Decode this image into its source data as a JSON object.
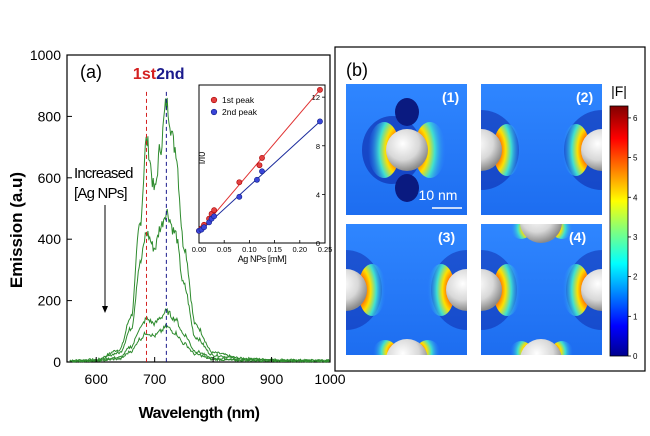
{
  "colors": {
    "spectrum": "#2e8b2e",
    "first_peak": "#d42020",
    "second_peak": "#1a1a8c",
    "panel_b_bg": "#ffffff",
    "field_low": "#1e5cff",
    "field_high": "#e02000"
  },
  "panel_a": {
    "label": "(a)",
    "annotation_line1": "Increased",
    "annotation_line2": "[Ag NPs]"
  },
  "chart_data": [
    {
      "type": "line",
      "xlabel": "Wavelength (nm)",
      "ylabel": "Emission (a.u)",
      "xlim": [
        550,
        1000
      ],
      "ylim": [
        0,
        1000
      ],
      "x_ticks": [
        "600",
        "700",
        "800",
        "900",
        "1000"
      ],
      "y_ticks": [
        "0",
        "200",
        "400",
        "600",
        "800",
        "1000"
      ],
      "peak_labels": [
        {
          "text": "1st",
          "x": 686
        },
        {
          "text": "2nd",
          "x": 720
        }
      ],
      "series": [
        {
          "x": [
            555,
            600,
            640,
            660,
            675,
            686,
            700,
            710,
            720,
            735,
            750,
            770,
            800,
            850,
            900,
            950,
            1000
          ],
          "y": [
            5,
            8,
            40,
            150,
            450,
            720,
            560,
            700,
            840,
            700,
            380,
            120,
            30,
            12,
            8,
            6,
            5
          ]
        },
        {
          "x": [
            555,
            600,
            640,
            660,
            675,
            686,
            700,
            710,
            720,
            735,
            750,
            770,
            800,
            850,
            900,
            950,
            1000
          ],
          "y": [
            4,
            6,
            30,
            110,
            320,
            420,
            370,
            440,
            490,
            420,
            250,
            80,
            22,
            10,
            6,
            5,
            4
          ]
        },
        {
          "x": [
            555,
            600,
            640,
            660,
            675,
            686,
            700,
            710,
            720,
            735,
            750,
            770,
            800,
            850,
            900,
            950,
            1000
          ],
          "y": [
            3,
            5,
            15,
            50,
            110,
            140,
            125,
            145,
            165,
            140,
            90,
            35,
            12,
            7,
            5,
            4,
            3
          ]
        },
        {
          "x": [
            555,
            600,
            640,
            660,
            675,
            686,
            700,
            710,
            720,
            735,
            750,
            770,
            800,
            850,
            900,
            950,
            1000
          ],
          "y": [
            2,
            4,
            10,
            35,
            75,
            95,
            85,
            100,
            115,
            95,
            60,
            25,
            8,
            5,
            4,
            3,
            2
          ]
        }
      ]
    },
    {
      "type": "scatter",
      "xlabel": "Ag NPs [mM]",
      "ylabel": "I/I0",
      "xlim": [
        0,
        0.25
      ],
      "ylim": [
        0,
        13
      ],
      "x_ticks": [
        "0.00",
        "0.05",
        "0.10",
        "0.15",
        "0.20",
        "0.25"
      ],
      "y_ticks": [
        "0",
        "4",
        "8",
        "12"
      ],
      "series": [
        {
          "name": "1st peak",
          "x": [
            0.0,
            0.005,
            0.01,
            0.02,
            0.025,
            0.03,
            0.08,
            0.12,
            0.125,
            0.24
          ],
          "y": [
            1.0,
            1.2,
            1.5,
            2.0,
            2.4,
            2.7,
            5.0,
            6.4,
            7.0,
            12.6
          ],
          "fit": [
            [
              0,
              0.9
            ],
            [
              0.24,
              12.6
            ]
          ]
        },
        {
          "name": "2nd peak",
          "x": [
            0.0,
            0.005,
            0.01,
            0.02,
            0.025,
            0.03,
            0.08,
            0.115,
            0.125,
            0.24
          ],
          "y": [
            1.0,
            1.1,
            1.3,
            1.7,
            2.0,
            2.2,
            3.8,
            5.2,
            5.9,
            10.0
          ],
          "fit": [
            [
              0,
              0.9
            ],
            [
              0.24,
              10.0
            ]
          ]
        }
      ]
    }
  ],
  "panel_b": {
    "label": "(b)",
    "colorbar_title": "|F|",
    "colorbar_ticks": [
      "0",
      "1",
      "2",
      "3",
      "4",
      "5",
      "6"
    ],
    "scale_bar": "10 nm",
    "subpanels": [
      {
        "label": "(1)"
      },
      {
        "label": "(2)"
      },
      {
        "label": "(3)"
      },
      {
        "label": "(4)"
      }
    ]
  }
}
